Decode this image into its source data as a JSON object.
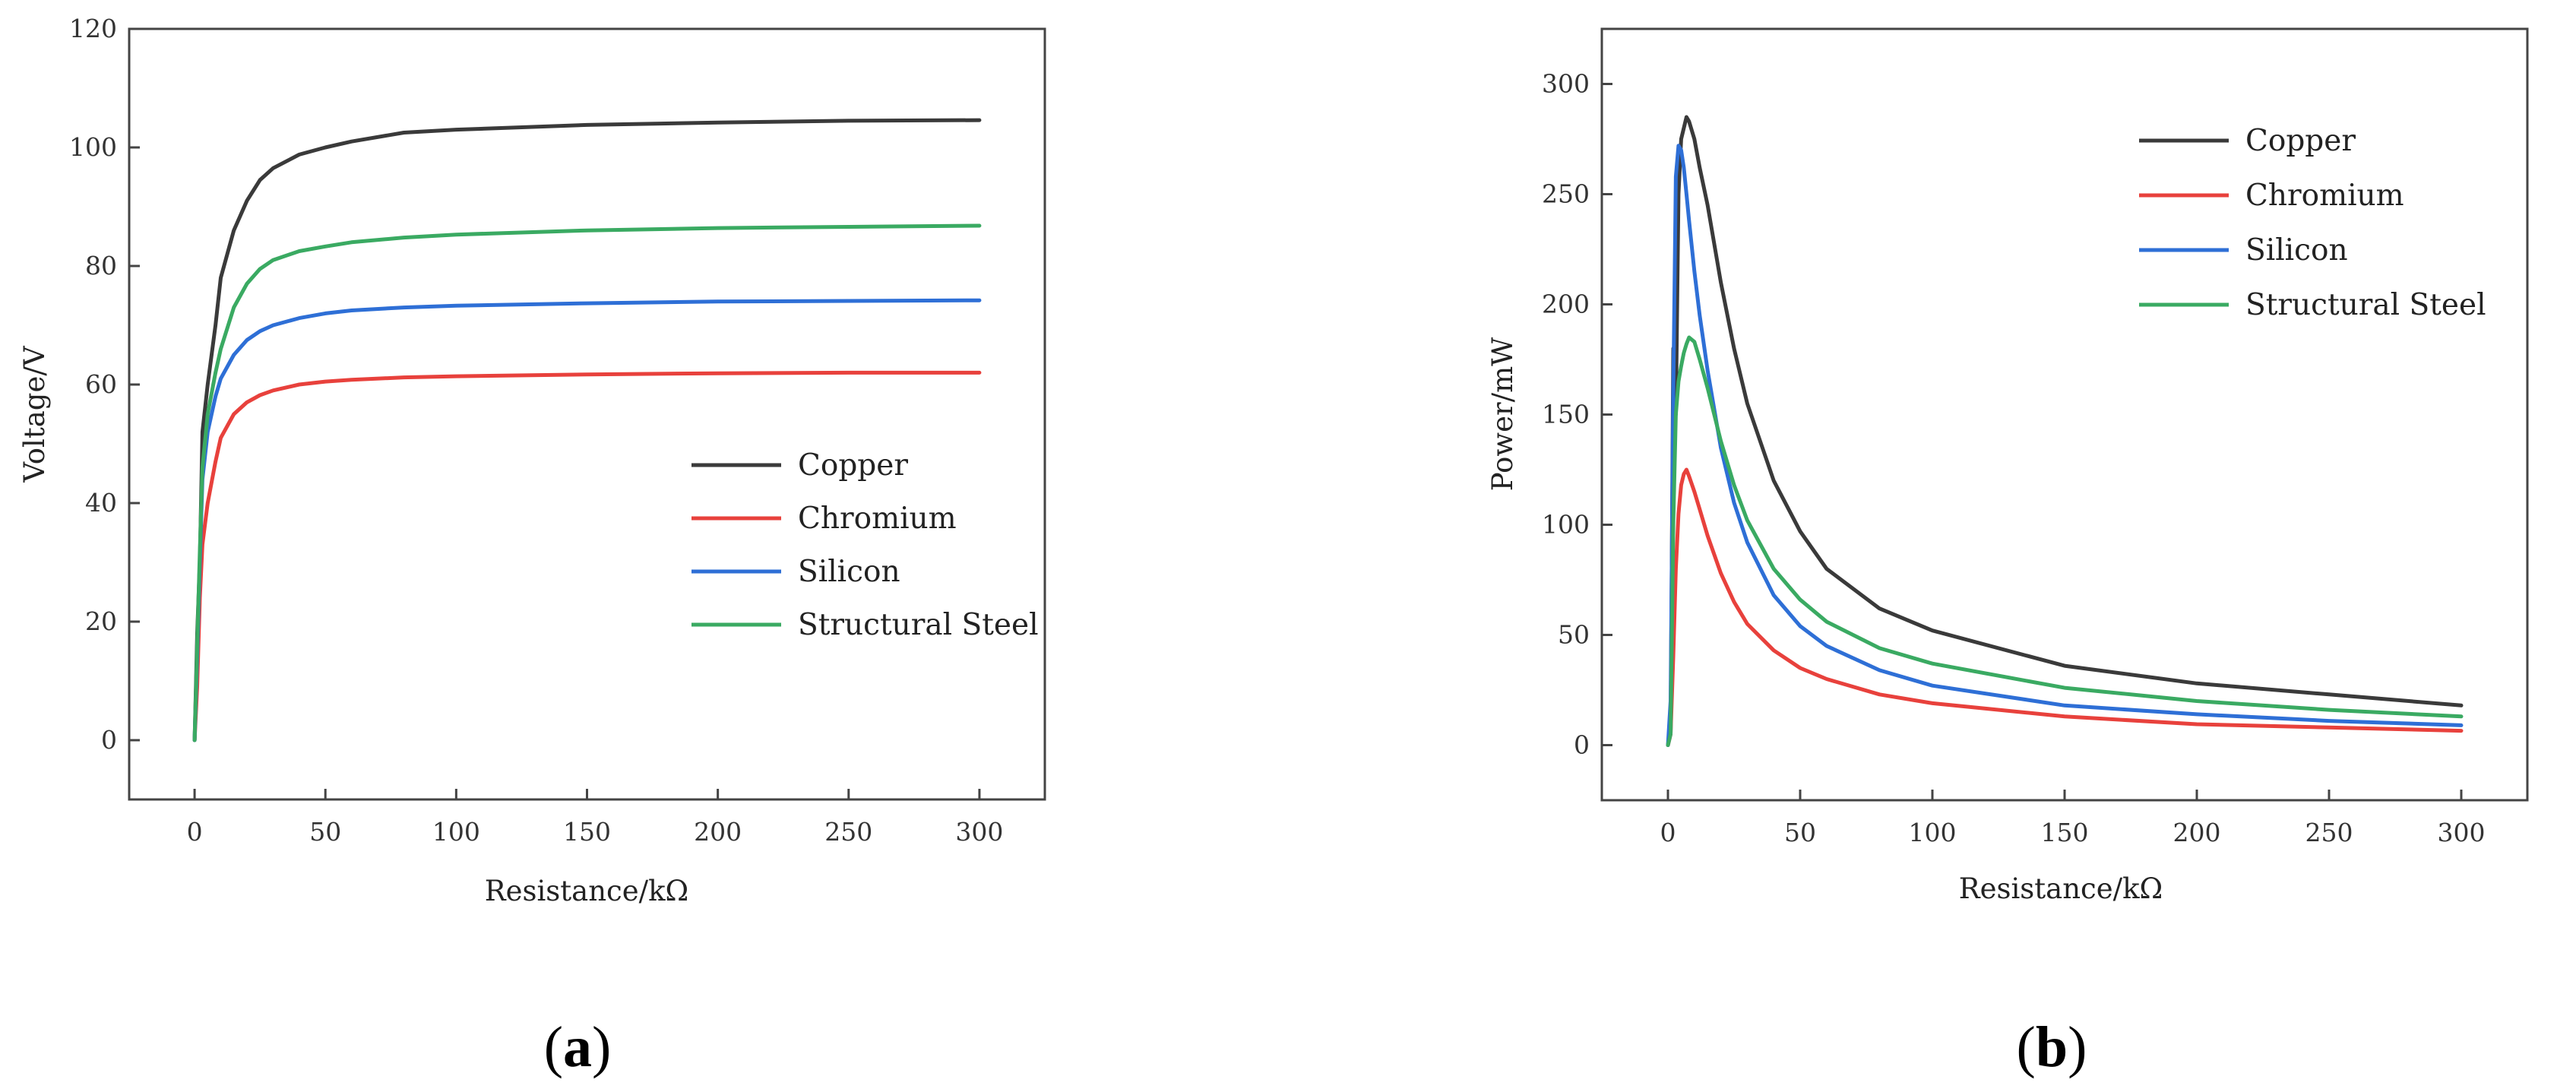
{
  "chart_data": [
    {
      "type": "line",
      "panel": "a",
      "title": "",
      "xlabel": "Resistance/kΩ",
      "ylabel": "Voltage/V",
      "xlim": [
        -25,
        325
      ],
      "ylim": [
        -10,
        120
      ],
      "xticks": [
        0,
        50,
        100,
        150,
        200,
        250,
        300
      ],
      "yticks": [
        0,
        20,
        40,
        60,
        80,
        100,
        120
      ],
      "legend_position": "center-right",
      "series": [
        {
          "name": "Copper",
          "color": "#3a3a3a",
          "x": [
            0,
            1,
            2,
            3,
            5,
            8,
            10,
            15,
            20,
            25,
            30,
            40,
            50,
            60,
            80,
            100,
            150,
            200,
            250,
            300
          ],
          "y": [
            0,
            18,
            30,
            52,
            60,
            70,
            78,
            86,
            91,
            94.5,
            96.5,
            98.8,
            100,
            101,
            102.5,
            103,
            103.8,
            104.2,
            104.5,
            104.6
          ]
        },
        {
          "name": "Chromium",
          "color": "#e8413c",
          "x": [
            0,
            1,
            2,
            3,
            5,
            8,
            10,
            15,
            20,
            25,
            30,
            40,
            50,
            60,
            80,
            100,
            150,
            200,
            250,
            300
          ],
          "y": [
            0,
            9,
            24,
            33,
            40,
            47,
            51,
            55,
            57,
            58.2,
            59,
            60,
            60.5,
            60.8,
            61.2,
            61.4,
            61.7,
            61.9,
            62,
            62
          ]
        },
        {
          "name": "Silicon",
          "color": "#2e6fd6",
          "x": [
            0,
            1,
            2,
            3,
            5,
            8,
            10,
            15,
            20,
            25,
            30,
            40,
            50,
            60,
            80,
            100,
            150,
            200,
            250,
            300
          ],
          "y": [
            0,
            14,
            30,
            44,
            52,
            58,
            61,
            65,
            67.5,
            69,
            70,
            71.2,
            72,
            72.5,
            73,
            73.3,
            73.7,
            74,
            74.1,
            74.2
          ]
        },
        {
          "name": "Structural Steel",
          "color": "#3aaa62",
          "x": [
            0,
            1,
            2,
            3,
            5,
            8,
            10,
            15,
            20,
            25,
            30,
            40,
            50,
            60,
            80,
            100,
            150,
            200,
            250,
            300
          ],
          "y": [
            0,
            16,
            32,
            46,
            55,
            62,
            66,
            73,
            77,
            79.5,
            81,
            82.5,
            83.3,
            84,
            84.8,
            85.3,
            86,
            86.4,
            86.6,
            86.8
          ]
        }
      ]
    },
    {
      "type": "line",
      "panel": "b",
      "title": "",
      "xlabel": "Resistance/kΩ",
      "ylabel": "Power/mW",
      "xlim": [
        -25,
        325
      ],
      "ylim": [
        -25,
        325
      ],
      "xticks": [
        0,
        50,
        100,
        150,
        200,
        250,
        300
      ],
      "yticks": [
        0,
        50,
        100,
        150,
        200,
        250,
        300
      ],
      "legend_position": "top-right",
      "series": [
        {
          "name": "Copper",
          "color": "#3a3a3a",
          "x": [
            0,
            1,
            2,
            3,
            4,
            5,
            6,
            7,
            8,
            10,
            12,
            15,
            20,
            25,
            30,
            40,
            50,
            60,
            80,
            100,
            150,
            200,
            250,
            300
          ],
          "y": [
            0,
            5,
            180,
            150,
            250,
            275,
            280,
            285,
            283,
            275,
            262,
            245,
            210,
            180,
            155,
            120,
            97,
            80,
            62,
            52,
            36,
            28,
            23,
            18
          ]
        },
        {
          "name": "Chromium",
          "color": "#e8413c",
          "x": [
            0,
            1,
            2,
            3,
            4,
            5,
            6,
            7,
            8,
            10,
            12,
            15,
            20,
            25,
            30,
            40,
            50,
            60,
            80,
            100,
            150,
            200,
            250,
            300
          ],
          "y": [
            0,
            5,
            40,
            80,
            105,
            118,
            123,
            125,
            122,
            115,
            107,
            95,
            78,
            65,
            55,
            43,
            35,
            30,
            23,
            19,
            13,
            9.5,
            8,
            6.5
          ]
        },
        {
          "name": "Silicon",
          "color": "#2e6fd6",
          "x": [
            0,
            1,
            2,
            3,
            4,
            5,
            6,
            7,
            8,
            10,
            12,
            15,
            20,
            25,
            30,
            40,
            50,
            60,
            80,
            100,
            150,
            200,
            250,
            300
          ],
          "y": [
            0,
            20,
            160,
            258,
            272,
            270,
            262,
            250,
            238,
            215,
            195,
            170,
            135,
            110,
            92,
            68,
            54,
            45,
            34,
            27,
            18,
            14,
            11,
            9
          ]
        },
        {
          "name": "Structural Steel",
          "color": "#3aaa62",
          "x": [
            0,
            1,
            2,
            3,
            4,
            5,
            6,
            7,
            8,
            10,
            12,
            15,
            20,
            25,
            30,
            40,
            50,
            60,
            80,
            100,
            150,
            200,
            250,
            300
          ],
          "y": [
            0,
            5,
            100,
            150,
            165,
            172,
            178,
            182,
            185,
            183,
            175,
            162,
            138,
            118,
            102,
            80,
            66,
            56,
            44,
            37,
            26,
            20,
            16,
            13
          ]
        }
      ]
    }
  ],
  "panel_labels": [
    {
      "open": "(",
      "letter": "a",
      "close": ")"
    },
    {
      "open": "(",
      "letter": "b",
      "close": ")"
    }
  ]
}
